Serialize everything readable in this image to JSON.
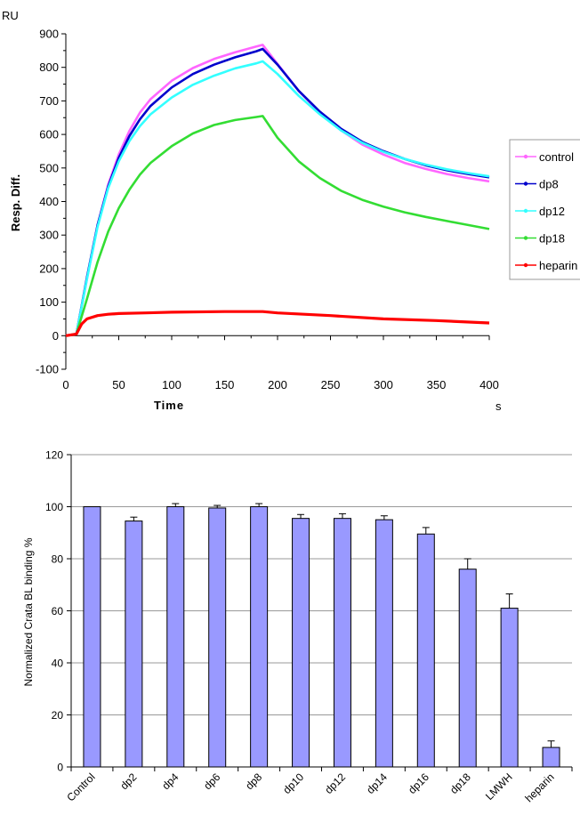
{
  "chart_data": [
    {
      "type": "line",
      "title": "",
      "xlabel": "Time",
      "ylabel": "Resp. Diff.",
      "y_unit": "RU",
      "x_unit": "s",
      "xlim": [
        0,
        400
      ],
      "ylim": [
        -100,
        900
      ],
      "x_ticks": [
        "0",
        "50",
        "100",
        "150",
        "200",
        "250",
        "300",
        "350",
        "400"
      ],
      "y_ticks": [
        "-100",
        "0",
        "100",
        "200",
        "300",
        "400",
        "500",
        "600",
        "700",
        "800",
        "900"
      ],
      "grid": false,
      "legend_position": "right",
      "series": [
        {
          "name": "control",
          "color": "#ff66ff",
          "marker": "circle",
          "x": [
            0,
            10,
            20,
            30,
            40,
            50,
            60,
            70,
            80,
            100,
            120,
            140,
            160,
            180,
            186,
            200,
            220,
            240,
            260,
            280,
            300,
            320,
            340,
            360,
            380,
            400
          ],
          "y": [
            0,
            5,
            170,
            330,
            450,
            540,
            610,
            665,
            705,
            760,
            798,
            825,
            845,
            862,
            867,
            810,
            730,
            665,
            612,
            570,
            540,
            515,
            497,
            482,
            470,
            460
          ]
        },
        {
          "name": "dp8",
          "color": "#0000cc",
          "marker": "triangle",
          "x": [
            0,
            10,
            20,
            30,
            40,
            50,
            60,
            70,
            80,
            100,
            120,
            140,
            160,
            180,
            186,
            200,
            220,
            240,
            260,
            280,
            300,
            320,
            340,
            360,
            380,
            400
          ],
          "y": [
            0,
            5,
            175,
            330,
            445,
            530,
            595,
            645,
            685,
            740,
            780,
            808,
            830,
            848,
            855,
            808,
            730,
            668,
            617,
            578,
            550,
            527,
            508,
            493,
            482,
            472
          ]
        },
        {
          "name": "dp12",
          "color": "#33ffff",
          "marker": "square",
          "x": [
            0,
            10,
            20,
            30,
            40,
            50,
            60,
            70,
            80,
            100,
            120,
            140,
            160,
            180,
            186,
            200,
            220,
            240,
            260,
            280,
            300,
            320,
            340,
            360,
            380,
            400
          ],
          "y": [
            0,
            5,
            170,
            325,
            440,
            520,
            580,
            625,
            660,
            710,
            748,
            775,
            797,
            812,
            818,
            780,
            715,
            660,
            612,
            575,
            548,
            527,
            510,
            496,
            485,
            475
          ]
        },
        {
          "name": "dp18",
          "color": "#33dd33",
          "marker": "cross",
          "x": [
            0,
            10,
            20,
            30,
            40,
            50,
            60,
            70,
            80,
            100,
            120,
            140,
            160,
            180,
            186,
            200,
            220,
            240,
            260,
            280,
            300,
            320,
            340,
            360,
            380,
            400
          ],
          "y": [
            0,
            5,
            110,
            220,
            310,
            380,
            435,
            480,
            515,
            565,
            603,
            628,
            643,
            652,
            655,
            590,
            520,
            470,
            432,
            405,
            385,
            368,
            354,
            342,
            330,
            318
          ]
        },
        {
          "name": "heparin",
          "color": "#ff0000",
          "marker": "circle",
          "x": [
            0,
            10,
            15,
            20,
            30,
            40,
            50,
            75,
            100,
            150,
            186,
            200,
            250,
            300,
            350,
            400
          ],
          "y": [
            0,
            5,
            35,
            50,
            60,
            64,
            66,
            68,
            70,
            72,
            72,
            68,
            60,
            50,
            45,
            38
          ]
        }
      ]
    },
    {
      "type": "bar",
      "title": "",
      "xlabel": "",
      "ylabel": "Normalized Crata BL binding %",
      "ylim": [
        0,
        120
      ],
      "y_ticks": [
        "0",
        "20",
        "40",
        "60",
        "80",
        "100",
        "120"
      ],
      "grid": true,
      "bar_color": "#9999ff",
      "categories": [
        "Control",
        "dp2",
        "dp4",
        "dp6",
        "dp8",
        "dp10",
        "dp12",
        "dp14",
        "dp16",
        "dp18",
        "LMWH",
        "heparin"
      ],
      "values": [
        100,
        94.5,
        100,
        99.5,
        100,
        95.5,
        95.5,
        95,
        89.5,
        76,
        61,
        7.5
      ],
      "errors": [
        0,
        1.5,
        1.2,
        1,
        1.2,
        1.5,
        1.8,
        1.5,
        2.5,
        4,
        5.5,
        2.5
      ]
    }
  ]
}
